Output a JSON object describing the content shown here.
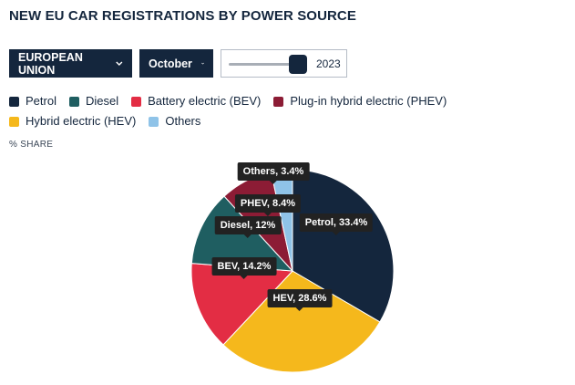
{
  "title": "NEW EU CAR REGISTRATIONS BY POWER SOURCE",
  "controls": {
    "region": "EUROPEAN UNION",
    "month": "October",
    "year": "2023",
    "year_slider_position": 0.9
  },
  "share_label": "% SHARE",
  "chart_data": {
    "type": "pie",
    "title": "NEW EU CAR REGISTRATIONS BY POWER SOURCE",
    "unit": "% SHARE",
    "slices": [
      {
        "name": "Petrol",
        "value": 33.4,
        "label": "Petrol, 33.4%",
        "color": "#14263d"
      },
      {
        "name": "Hybrid electric (HEV)",
        "value": 28.6,
        "label": "HEV, 28.6%",
        "color": "#f5b81c"
      },
      {
        "name": "Battery electric (BEV)",
        "value": 14.2,
        "label": "BEV, 14.2%",
        "color": "#e32d44"
      },
      {
        "name": "Diesel",
        "value": 12,
        "label": "Diesel, 12%",
        "color": "#1f5e61"
      },
      {
        "name": "Plug-in hybrid electric (PHEV)",
        "value": 8.4,
        "label": "PHEV, 8.4%",
        "color": "#8c1c35"
      },
      {
        "name": "Others",
        "value": 3.4,
        "label": "Others, 3.4%",
        "color": "#8fc3e8"
      }
    ],
    "legend": [
      {
        "name": "Petrol",
        "color": "#14263d"
      },
      {
        "name": "Diesel",
        "color": "#1f5e61"
      },
      {
        "name": "Battery electric (BEV)",
        "color": "#e32d44"
      },
      {
        "name": "Plug-in hybrid electric (PHEV)",
        "color": "#8c1c35"
      },
      {
        "name": "Hybrid electric (HEV)",
        "color": "#f5b81c"
      },
      {
        "name": "Others",
        "color": "#8fc3e8"
      }
    ],
    "legend_placement": "top"
  }
}
